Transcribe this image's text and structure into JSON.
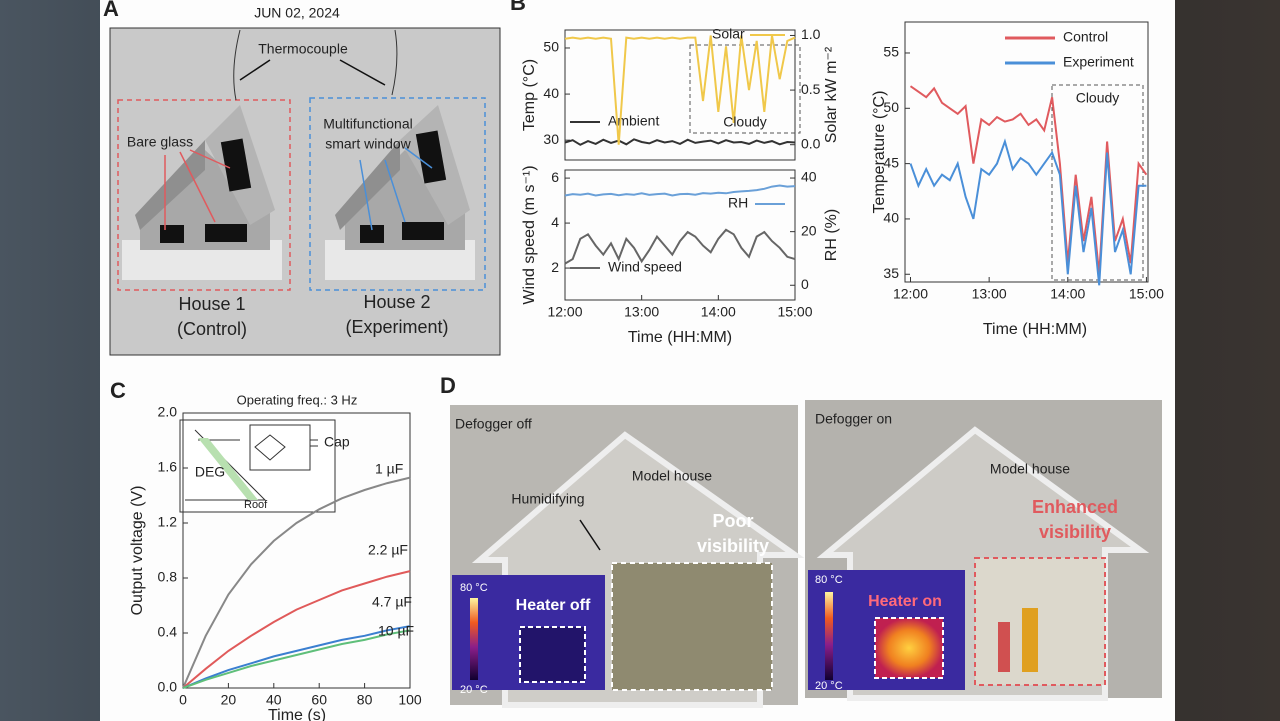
{
  "figure": {
    "panel_a": {
      "letter": "A",
      "date": "JUN 02, 2024",
      "thermocouple": "Thermocouple",
      "bare_glass": "Bare glass",
      "smart_window_1": "Multifunctional",
      "smart_window_2": "smart window",
      "house1": "House 1",
      "house1_role": "(Control)",
      "house2": "House 2",
      "house2_role": "(Experiment)"
    },
    "panel_b": {
      "letter": "B"
    },
    "panel_c": {
      "letter": "C",
      "inset_cap": "Cap",
      "inset_deg": "DEG",
      "inset_roof": "Roof"
    },
    "panel_d": {
      "letter": "D",
      "left": {
        "state": "Defogger off",
        "house": "Model house",
        "humid": "Humidifying",
        "vis_1": "Poor",
        "vis_2": "visibility",
        "heater": "Heater off",
        "tmax": "80 °C",
        "tmin": "20 °C"
      },
      "right": {
        "state": "Defogger on",
        "house": "Model house",
        "vis_1": "Enhanced",
        "vis_2": "visibility",
        "heater": "Heater on",
        "tmax": "80 °C",
        "tmin": "20 °C"
      }
    }
  },
  "chart_data": [
    {
      "type": "line",
      "ylabel": "Temp (°C)",
      "y2label": "Solar kW m⁻²",
      "annotation": "Cloudy",
      "x": [
        12,
        12.1,
        12.2,
        12.3,
        12.4,
        12.5,
        12.6,
        12.7,
        12.8,
        12.9,
        13,
        13.1,
        13.2,
        13.3,
        13.4,
        13.5,
        13.6,
        13.7,
        13.8,
        13.9,
        14,
        14.1,
        14.2,
        14.3,
        14.4,
        14.5,
        14.6,
        14.7,
        14.8,
        14.9,
        15
      ],
      "xlim": [
        12,
        15
      ],
      "ylim": [
        25.7,
        53.9
      ],
      "yticks": [
        30,
        40,
        50
      ],
      "y2lim": [
        -0.14,
        1.05
      ],
      "y2ticks": [
        {
          "value": 0,
          "label": "0.0"
        },
        {
          "value": 0.5,
          "label": "0.5"
        },
        {
          "value": 1,
          "label": "1.0"
        }
      ],
      "series": [
        {
          "name": "Ambient",
          "color": "#333333",
          "values": [
            29.5,
            30,
            29,
            29.8,
            29.2,
            30.1,
            29.4,
            29.9,
            29.1,
            30.2,
            29.6,
            29.3,
            30,
            29.5,
            29.8,
            29.2,
            30.1,
            29.4,
            29.7,
            29.9,
            29.3,
            30,
            29.5,
            29.6,
            29.2,
            29.9,
            29.4,
            29.8,
            29.1,
            29.6,
            29.5
          ]
        },
        {
          "name": "Solar",
          "color": "#f0c84a",
          "axis": "y2",
          "values": [
            0.97,
            0.98,
            0.97,
            0.98,
            0.97,
            0.98,
            0.97,
            0,
            0.98,
            0.97,
            0.98,
            0.97,
            0.98,
            0.97,
            0.98,
            0.97,
            0.98,
            0.98,
            0.4,
            1,
            0.3,
            0.9,
            0.2,
            1,
            0.5,
            0.95,
            0.3,
            1,
            0.6,
            0.95,
            0.98
          ]
        }
      ]
    },
    {
      "type": "line",
      "ylabel": "Wind speed (m s⁻¹)",
      "y2label": "RH (%)",
      "xlabel": "Time (HH:MM)",
      "x": [
        12,
        12.1,
        12.2,
        12.3,
        12.4,
        12.5,
        12.6,
        12.7,
        12.8,
        12.9,
        13,
        13.1,
        13.2,
        13.3,
        13.4,
        13.5,
        13.6,
        13.7,
        13.8,
        13.9,
        14,
        14.1,
        14.2,
        14.3,
        14.4,
        14.5,
        14.6,
        14.7,
        14.8,
        14.9,
        15
      ],
      "xlim": [
        12,
        15
      ],
      "xticks": [
        {
          "value": 12,
          "label": "12:00"
        },
        {
          "value": 13,
          "label": "13:00"
        },
        {
          "value": 14,
          "label": "14:00"
        },
        {
          "value": 15,
          "label": "15:00"
        }
      ],
      "ylim": [
        0.58,
        6.36
      ],
      "yticks": [
        2,
        4,
        6
      ],
      "y2lim": [
        -5.5,
        43
      ],
      "y2ticks": [
        0,
        20,
        40
      ],
      "series": [
        {
          "name": "Wind speed",
          "color": "#666666",
          "values": [
            2.2,
            2.4,
            3.3,
            3.5,
            3,
            2.6,
            3.1,
            2.4,
            3.3,
            2.9,
            2.3,
            2.8,
            3.4,
            3,
            2.6,
            3.2,
            3.6,
            3.4,
            3,
            2.7,
            3.3,
            3.7,
            3.5,
            2.9,
            2.5,
            3.4,
            3.6,
            3.2,
            2.9,
            2.5,
            2.4
          ]
        },
        {
          "name": "RH",
          "color": "#6aa0d8",
          "axis": "y2",
          "values": [
            33.5,
            34,
            33.8,
            34.2,
            33.5,
            33.9,
            34.1,
            33.6,
            34,
            33.8,
            34.3,
            33.7,
            34,
            34.2,
            33.5,
            34,
            34.1,
            33.8,
            34.4,
            34.2,
            34.5,
            34.3,
            34.8,
            35,
            35.2,
            35.5,
            36,
            36.8,
            37.2,
            36.8,
            37
          ]
        }
      ]
    },
    {
      "type": "line",
      "ylabel": "Temperature (°C)",
      "xlabel": "Time (HH:MM)",
      "annotation": "Cloudy",
      "legend": "upper right",
      "x": [
        12,
        12.1,
        12.2,
        12.3,
        12.4,
        12.5,
        12.6,
        12.7,
        12.8,
        12.9,
        13,
        13.1,
        13.2,
        13.3,
        13.4,
        13.5,
        13.6,
        13.7,
        13.8,
        13.9,
        14,
        14.1,
        14.2,
        14.3,
        14.4,
        14.5,
        14.6,
        14.7,
        14.8,
        14.9,
        15
      ],
      "xlim": [
        11.93,
        15.02
      ],
      "xticks": [
        {
          "value": 12,
          "label": "12:00"
        },
        {
          "value": 13,
          "label": "13:00"
        },
        {
          "value": 14,
          "label": "14:00"
        },
        {
          "value": 15,
          "label": "15:00"
        }
      ],
      "ylim": [
        34.3,
        57.8
      ],
      "yticks": [
        35,
        40,
        45,
        50,
        55
      ],
      "series": [
        {
          "name": "Control",
          "color": "#e05a5e",
          "values": [
            52,
            51.5,
            51,
            51.8,
            50.5,
            50,
            49.5,
            50.2,
            45,
            49,
            48.5,
            49.2,
            48.8,
            49,
            49.5,
            48.5,
            49,
            48,
            51,
            45,
            36,
            44,
            38,
            42,
            35,
            47,
            38,
            40,
            36,
            45,
            44
          ]
        },
        {
          "name": "Experiment",
          "color": "#4a8fd8",
          "values": [
            45,
            43,
            44.5,
            43,
            44,
            43.5,
            45,
            42,
            40,
            44.5,
            44,
            45,
            47,
            44.5,
            45.5,
            45,
            44,
            45,
            46,
            44,
            35,
            43,
            37,
            41,
            34,
            46,
            37,
            39,
            35,
            43,
            43
          ]
        }
      ]
    },
    {
      "type": "line",
      "title": "Operating freq.: 3 Hz",
      "ylabel": "Output voltage (V)",
      "xlabel": "Time (s)",
      "x": [
        0,
        10,
        20,
        30,
        40,
        50,
        60,
        70,
        80,
        90,
        100
      ],
      "xlim": [
        0,
        100
      ],
      "xticks": [
        0,
        20,
        40,
        60,
        80,
        100
      ],
      "ylim": [
        0,
        2
      ],
      "yticks": [
        {
          "value": 0,
          "label": "0.0"
        },
        {
          "value": 0.4,
          "label": "0.4"
        },
        {
          "value": 0.8,
          "label": "0.8"
        },
        {
          "value": 1.2,
          "label": "1.2"
        },
        {
          "value": 1.6,
          "label": "1.6"
        },
        {
          "value": 2,
          "label": "2.0"
        }
      ],
      "series": [
        {
          "name": "1 µF",
          "color": "#888888",
          "values": [
            0,
            0.38,
            0.68,
            0.9,
            1.07,
            1.2,
            1.3,
            1.38,
            1.44,
            1.49,
            1.53
          ]
        },
        {
          "name": "2.2 µF",
          "color": "#e05a5a",
          "values": [
            0,
            0.14,
            0.27,
            0.38,
            0.48,
            0.57,
            0.64,
            0.71,
            0.76,
            0.81,
            0.85
          ]
        },
        {
          "name": "4.7 µF",
          "color": "#3b7fd0",
          "values": [
            0,
            0.07,
            0.13,
            0.18,
            0.23,
            0.27,
            0.31,
            0.35,
            0.38,
            0.42,
            0.45
          ]
        },
        {
          "name": "10 µF",
          "color": "#5fbf7a",
          "values": [
            0,
            0.06,
            0.11,
            0.16,
            0.2,
            0.24,
            0.28,
            0.32,
            0.35,
            0.39,
            0.42
          ]
        }
      ]
    }
  ]
}
